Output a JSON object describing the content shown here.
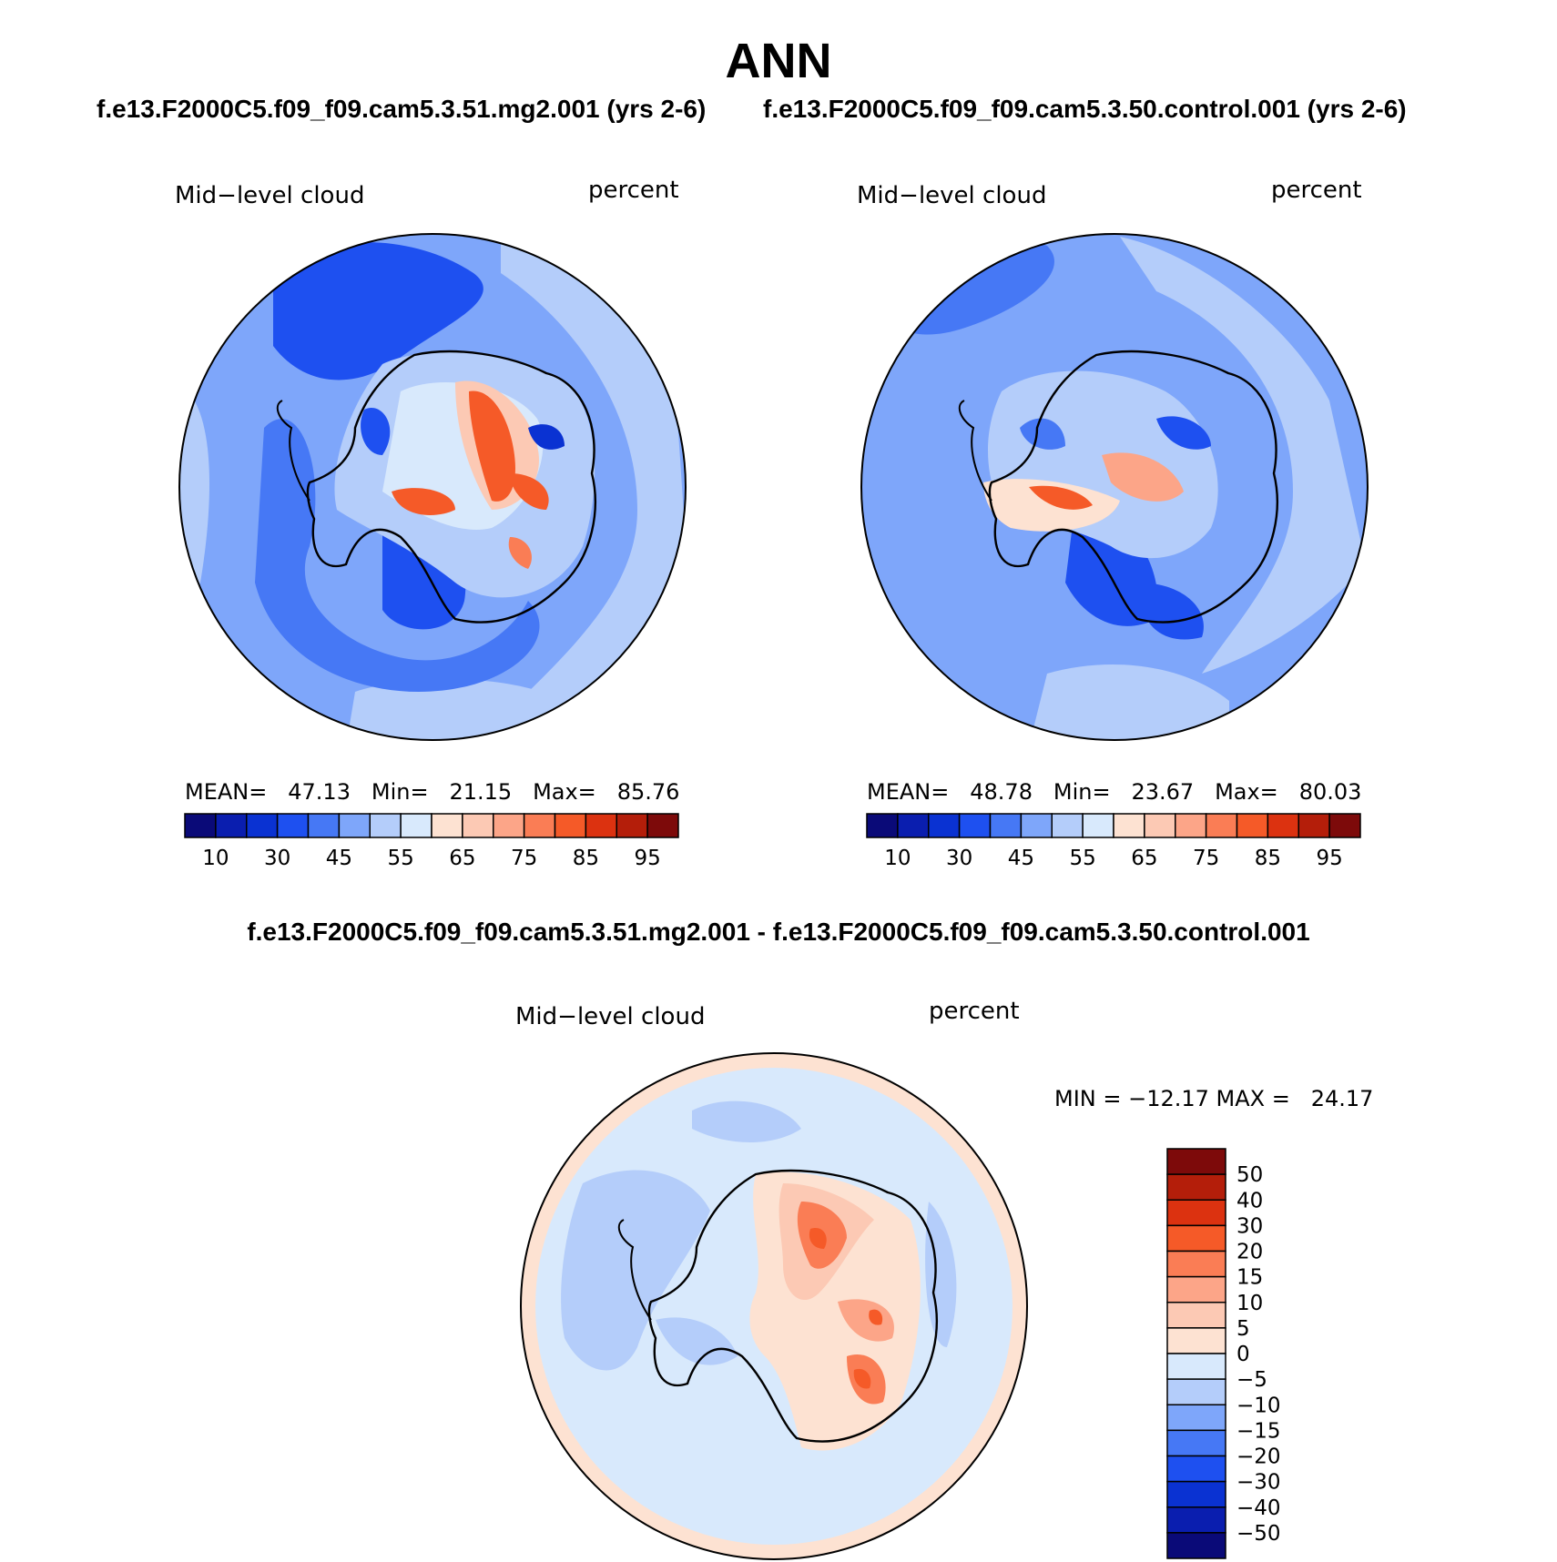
{
  "title": "ANN",
  "panels": [
    {
      "id": "left",
      "case_title": "f.e13.F2000C5.f09_f09.cam5.3.51.mg2.001 (yrs 2-6)",
      "variable": "Mid−level cloud",
      "units": "percent",
      "stats": {
        "mean_label": "MEAN=",
        "mean": "47.13",
        "min_label": "Min=",
        "min": "21.15",
        "max_label": "Max=",
        "max": "85.76"
      }
    },
    {
      "id": "right",
      "case_title": "f.e13.F2000C5.f09_f09.cam5.3.50.control.001 (yrs 2-6)",
      "variable": "Mid−level cloud",
      "units": "percent",
      "stats": {
        "mean_label": "MEAN=",
        "mean": "48.78",
        "min_label": "Min=",
        "min": "23.67",
        "max_label": "Max=",
        "max": "80.03"
      }
    },
    {
      "id": "diff",
      "case_title": "f.e13.F2000C5.f09_f09.cam5.3.51.mg2.001 - f.e13.F2000C5.f09_f09.cam5.3.50.control.001",
      "variable": "Mid−level cloud",
      "units": "percent",
      "stats_text": "MIN = −12.17 MAX =   24.17"
    }
  ],
  "chart_data": [
    {
      "type": "heatmap",
      "title": "Mid−level cloud",
      "units": "percent",
      "projection": "south polar stereographic",
      "colorbar_orientation": "horizontal",
      "colorbar_labels": [
        "10",
        "30",
        "45",
        "55",
        "65",
        "75",
        "85",
        "95"
      ],
      "colors": [
        "#0a0a78",
        "#0a1eaf",
        "#0a32d2",
        "#1e50f0",
        "#4678f5",
        "#7ea6fa",
        "#b4cdfa",
        "#d8e9fc",
        "#fde2d2",
        "#fcc9b4",
        "#fca588",
        "#fa7d55",
        "#f55a28",
        "#dc3210",
        "#b41e0a",
        "#7d0a0a"
      ],
      "mean": 47.13,
      "min": 21.15,
      "max": 85.76
    },
    {
      "type": "heatmap",
      "title": "Mid−level cloud",
      "units": "percent",
      "projection": "south polar stereographic",
      "colorbar_orientation": "horizontal",
      "colorbar_labels": [
        "10",
        "30",
        "45",
        "55",
        "65",
        "75",
        "85",
        "95"
      ],
      "colors": [
        "#0a0a78",
        "#0a1eaf",
        "#0a32d2",
        "#1e50f0",
        "#4678f5",
        "#7ea6fa",
        "#b4cdfa",
        "#d8e9fc",
        "#fde2d2",
        "#fcc9b4",
        "#fca588",
        "#fa7d55",
        "#f55a28",
        "#dc3210",
        "#b41e0a",
        "#7d0a0a"
      ],
      "mean": 48.78,
      "min": 23.67,
      "max": 80.03
    },
    {
      "type": "heatmap",
      "title": "Mid−level cloud",
      "units": "percent",
      "projection": "south polar stereographic",
      "colorbar_orientation": "vertical",
      "colorbar_labels": [
        "50",
        "40",
        "30",
        "20",
        "15",
        "10",
        "5",
        "0",
        "−5",
        "−10",
        "−15",
        "−20",
        "−30",
        "−40",
        "−50"
      ],
      "colors": [
        "#7d0a0a",
        "#b41e0a",
        "#dc3210",
        "#f55a28",
        "#fa7d55",
        "#fca588",
        "#fcc9b4",
        "#fde2d2",
        "#d8e9fc",
        "#b4cdfa",
        "#7ea6fa",
        "#4678f5",
        "#1e50f0",
        "#0a32d2",
        "#0a1eaf",
        "#0a0a78"
      ],
      "min": -12.17,
      "max": 24.17
    }
  ]
}
